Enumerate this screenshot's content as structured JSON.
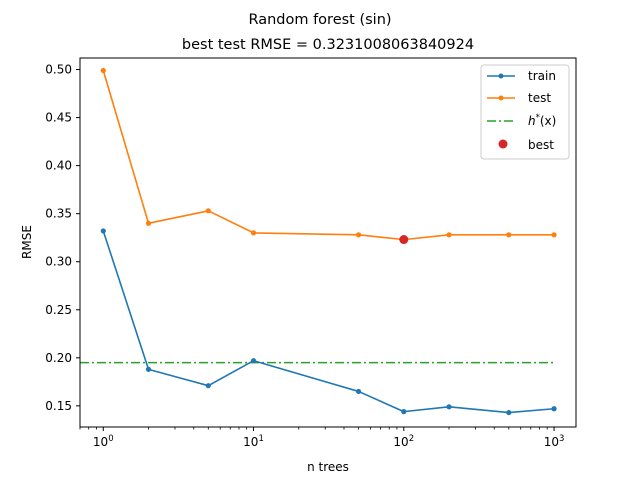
{
  "chart_data": {
    "type": "line",
    "title": "Random forest (sin)",
    "subtitle": "best test RMSE = 0.3231008063840924",
    "xlabel": "n trees",
    "ylabel": "RMSE",
    "x_scale": "log",
    "xlim": [
      0.7,
      1400
    ],
    "ylim": [
      0.128,
      0.512
    ],
    "x_ticks": [
      1,
      10,
      100,
      1000
    ],
    "x_tick_labels": [
      {
        "base": "10",
        "exp": "0"
      },
      {
        "base": "10",
        "exp": "1"
      },
      {
        "base": "10",
        "exp": "2"
      },
      {
        "base": "10",
        "exp": "3"
      }
    ],
    "y_ticks": [
      0.15,
      0.2,
      0.25,
      0.3,
      0.35,
      0.4,
      0.45,
      0.5
    ],
    "y_tick_labels": [
      "0.15",
      "0.20",
      "0.25",
      "0.30",
      "0.35",
      "0.40",
      "0.45",
      "0.50"
    ],
    "grid": false,
    "legend_position": "top-right",
    "x": [
      1,
      2,
      5,
      10,
      50,
      100,
      200,
      500,
      1000
    ],
    "series": [
      {
        "name": "train",
        "color": "#1f77b4",
        "style": "solid-with-dots",
        "values": [
          0.332,
          0.188,
          0.171,
          0.197,
          0.165,
          0.144,
          0.149,
          0.143,
          0.147
        ]
      },
      {
        "name": "test",
        "color": "#ff7f0e",
        "style": "solid-with-dots",
        "values": [
          0.499,
          0.34,
          0.353,
          0.33,
          0.328,
          0.323,
          0.328,
          0.328,
          0.328
        ]
      }
    ],
    "reference_line": {
      "name_prefix": "h",
      "name_sup": "*",
      "name_suffix": "(x)",
      "color": "#2ca02c",
      "style": "dash-dot",
      "y": 0.195,
      "x_range": [
        0.7,
        1000
      ]
    },
    "best_point": {
      "name": "best",
      "color": "#d62728",
      "x": 100,
      "y": 0.3231008063840924
    }
  }
}
